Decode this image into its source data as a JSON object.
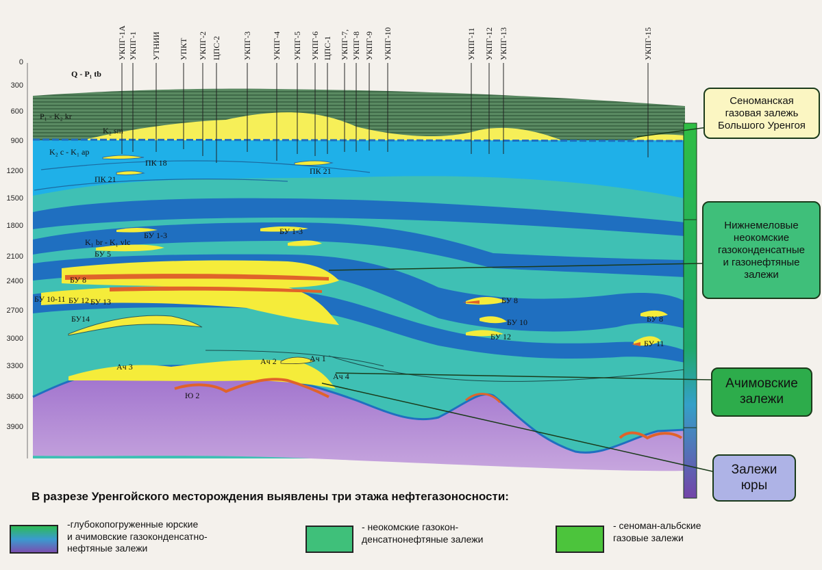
{
  "wells": [
    {
      "id": "w1a",
      "label": "УКПГ-1А"
    },
    {
      "id": "w1",
      "label": "УКПГ-1"
    },
    {
      "id": "wtnii",
      "label": "УТНИИ"
    },
    {
      "id": "wukt",
      "label": "УПКТ"
    },
    {
      "id": "w2",
      "label": "УКПГ-2"
    },
    {
      "id": "wcps2",
      "label": "ЦПС-2"
    },
    {
      "id": "w3",
      "label": "УКПГ-3"
    },
    {
      "id": "w4",
      "label": "УКПГ-4"
    },
    {
      "id": "w5",
      "label": "УКПГ-5"
    },
    {
      "id": "w6",
      "label": "УКПГ-6"
    },
    {
      "id": "wcps1",
      "label": "ЦПС-1"
    },
    {
      "id": "w7",
      "label": "УКПГ-7,"
    },
    {
      "id": "w8",
      "label": "УКПГ-8"
    },
    {
      "id": "w9",
      "label": "УКПГ-9"
    },
    {
      "id": "w10",
      "label": "УКПГ-10"
    },
    {
      "id": "w11",
      "label": "УКПГ-11"
    },
    {
      "id": "w12",
      "label": "УКПГ-12"
    },
    {
      "id": "w13",
      "label": "УКПГ-13"
    },
    {
      "id": "w15",
      "label": "УКПГ-15"
    }
  ],
  "depth_ticks": [
    "0",
    "300",
    "600",
    "900",
    "1200",
    "1500",
    "1800",
    "2100",
    "2400",
    "2700",
    "3000",
    "3300",
    "3600",
    "3900"
  ],
  "layer_labels": {
    "qp": "Q - P₁ tb",
    "pk": "P₁ - K₂ kr",
    "k2sm": "K₂ sm",
    "k2ck1ap": "K₂ c - K₁ ap",
    "pk18": "ПК 18",
    "pk21a": "ПК 21",
    "pk21b": "ПК 21",
    "k1br": "K₁ br - K₁ vlc",
    "bu13a": "БУ 1-3",
    "bu13b": "БУ 1-3",
    "bu5": "БУ 5",
    "bu8": "БУ 8",
    "bu1011": "БУ 10-11",
    "bu12": "БУ 12",
    "bu13": "БУ 13",
    "bu14": "БУ14",
    "bu8r": "БУ 8",
    "bu10r": "БУ 10",
    "bu12r": "БУ 12",
    "bu8far": "БУ 8",
    "bu11far": "БУ 11",
    "ach3": "Ач 3",
    "ach2": "Ач 2",
    "ach1": "Ач 1",
    "ach4": "Ач 4",
    "yu2": "Ю 2"
  },
  "callouts": {
    "cenoman": "Сеноманская\nгазовая залежь\nБольшого Уренгоя",
    "neocomian": "Нижнемеловые\nнеокомские\nгазоконденсатные\nи газонефтяные\nзалежи",
    "achimov": "Ачимовские\nзалежи",
    "jurassic": "Залежи\nюры"
  },
  "summary": {
    "title": "В разрезе Уренгойского месторождения выявлены три этажа нефтегазоносности:"
  },
  "legend": {
    "jurassic": "-глубокопогруженные юрские\nи ачимовские газоконденсатно-\nнефтяные залежи",
    "neocomian": "- неокомские газокон-\nденсатнонефтяные залежи",
    "cenoman": "- сеноман-альбские\nгазовые залежи"
  },
  "colors": {
    "upper_stripes": "#4f7a55",
    "cenoman_gas": "#f6ef58",
    "cenomanian_blue": "#1fb0e8",
    "neocomian_dark": "#1f6fc0",
    "neocomian_teal": "#3ac0b8",
    "oil": "#e0632a",
    "basement": "#8c5fb8"
  }
}
